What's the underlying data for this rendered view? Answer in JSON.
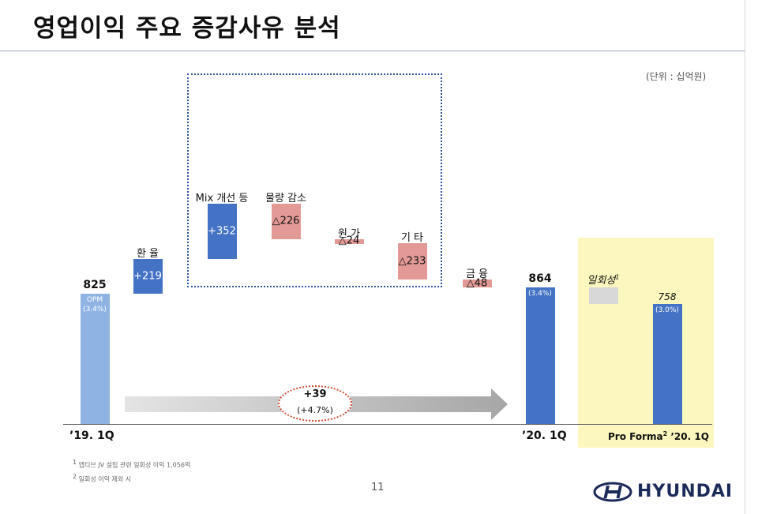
{
  "title": "영업이익 주요 증감사유 분석",
  "unit": "(단위 : 십억원)",
  "colors": {
    "start": "#8fb4e3",
    "increase": "#4472c4",
    "decrease": "#e39a96",
    "one_off": "#d8d8d8",
    "highlight_box": "#fbf7bf",
    "arrow": "#c9c9c9"
  },
  "chart_data": {
    "type": "bar",
    "subtype": "waterfall",
    "categories": [
      "'19. 1Q",
      "환 율",
      "Mix 개선 등",
      "물량 감소",
      "원 가",
      "기 타",
      "금 융",
      "'20. 1Q",
      "일회성",
      "Pro Forma '20. 1Q"
    ],
    "items": [
      {
        "key": "start",
        "label": "825",
        "value": 825,
        "kind": "total",
        "note": "OPM",
        "margin": "(3.4%)"
      },
      {
        "key": "fx",
        "label": "환 율",
        "value": 219,
        "kind": "increase",
        "text": "+219"
      },
      {
        "key": "mix",
        "label": "Mix 개선 등",
        "value": 352,
        "kind": "increase",
        "text": "+352"
      },
      {
        "key": "volume",
        "label": "물량 감소",
        "value": -226,
        "kind": "decrease",
        "text": "△226"
      },
      {
        "key": "cost",
        "label": "원 가",
        "value": -24,
        "kind": "decrease",
        "text": "△24"
      },
      {
        "key": "other",
        "label": "기 타",
        "value": -233,
        "kind": "decrease",
        "text": "△233"
      },
      {
        "key": "finance",
        "label": "금 융",
        "value": -48,
        "kind": "decrease",
        "text": "△48"
      },
      {
        "key": "end",
        "label": "864",
        "value": 864,
        "kind": "total",
        "margin": "(3.4%)"
      },
      {
        "key": "oneoff",
        "label": "일회성",
        "value": -106,
        "kind": "one_off"
      },
      {
        "key": "proforma",
        "label": "758",
        "value": 758,
        "kind": "total",
        "margin": "(3.0%)"
      }
    ],
    "growth": {
      "value": "+39",
      "pct": "(+4.7%)"
    },
    "x_labels": {
      "start": "’19. 1Q",
      "end": "’20. 1Q",
      "proforma": "Pro Forma",
      "proforma_period": " ’20. 1Q"
    },
    "superscripts": {
      "oneoff": "1",
      "proforma": "2"
    }
  },
  "footnotes": [
    {
      "num": "1",
      "text": "앱티브 JV 설립 관련 일회성 이익 1,056억"
    },
    {
      "num": "2",
      "text": "일회성 이익 제외 시"
    }
  ],
  "page_number": "11",
  "brand": "HYUNDAI"
}
